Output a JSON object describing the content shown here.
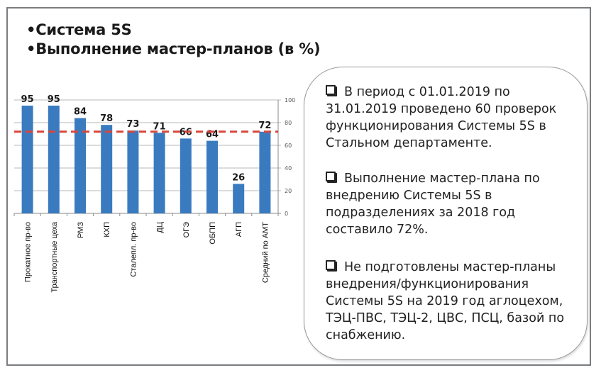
{
  "title_lines": [
    "•Система 5S",
    "•Выполнение мастер-планов (в %)"
  ],
  "notes": [
    "В период с 01.01.2019 по 31.01.2019 проведено 60 проверок функционирования Системы 5S в Стальном департаменте.",
    "Выполнение мастер-плана по внедрению Системы 5S в подразделениях за 2018 год составило 72%.",
    "Не подготовлены мастер-планы внедрения/функционирования Системы 5S на 2019 год аглоцехом, ТЭЦ-ПВС, ТЭЦ-2, ЦВС, ПСЦ, базой по снабжению."
  ],
  "chart_data": {
    "type": "bar",
    "title": "Выполнение мастер-планов (в %)",
    "categories": [
      "Прокатное пр-во",
      "Транспортные цеха",
      "РМЗ",
      "КХП",
      "Сталепл. пр-во",
      "ДЦ",
      "ОГЭ",
      "ОБПП",
      "АГП",
      "Средний по АМТ"
    ],
    "values": [
      95,
      95,
      84,
      78,
      73,
      71,
      66,
      64,
      26,
      72
    ],
    "data_labels": [
      "95",
      "95",
      "84",
      "78",
      "73",
      "71",
      "66",
      "64",
      "26",
      "72"
    ],
    "reference_line": {
      "value": 72,
      "style": "dashed",
      "color": "#d9463a"
    },
    "ylim": [
      0,
      100
    ],
    "yticks": [
      "0",
      "20",
      "40",
      "60",
      "80",
      "100"
    ],
    "y_axis_side": "right",
    "grid": true,
    "bar_color": "#3a7bc0"
  }
}
